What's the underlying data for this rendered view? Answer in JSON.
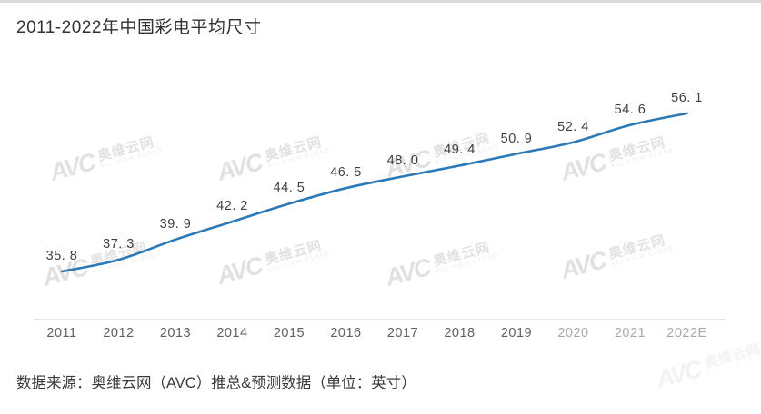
{
  "page": {
    "title": "2011-2022年中国彩电平均尺寸",
    "source": "数据来源：奥维云网（AVC）推总&预测数据（单位：英寸）"
  },
  "watermark": {
    "logo": "AVC",
    "name": "奥维云网",
    "subtitle": "ALL VIEW CLOUD"
  },
  "chart_data": {
    "type": "line",
    "title": "2011-2022年中国彩电平均尺寸",
    "categories": [
      "2011",
      "2012",
      "2013",
      "2014",
      "2015",
      "2016",
      "2017",
      "2018",
      "2019",
      "2020",
      "2021",
      "2022E"
    ],
    "values": [
      35.8,
      37.3,
      39.9,
      42.2,
      44.5,
      46.5,
      48.0,
      49.4,
      50.9,
      52.4,
      54.6,
      56.1
    ],
    "point_labels": [
      "35. 8",
      "37. 3",
      "39. 9",
      "42. 2",
      "44. 5",
      "46. 5",
      "48. 0",
      "49. 4",
      "50. 9",
      "52. 4",
      "54. 6",
      "56. 1"
    ],
    "faded_labels": [
      "2020",
      "2021",
      "2022E"
    ],
    "xlabel": "",
    "ylabel": "",
    "unit": "英寸",
    "ylim": [
      34,
      58
    ],
    "grid": false,
    "legend": false,
    "line_color": "#2a79b8",
    "label_color": "#3f3f3f"
  }
}
